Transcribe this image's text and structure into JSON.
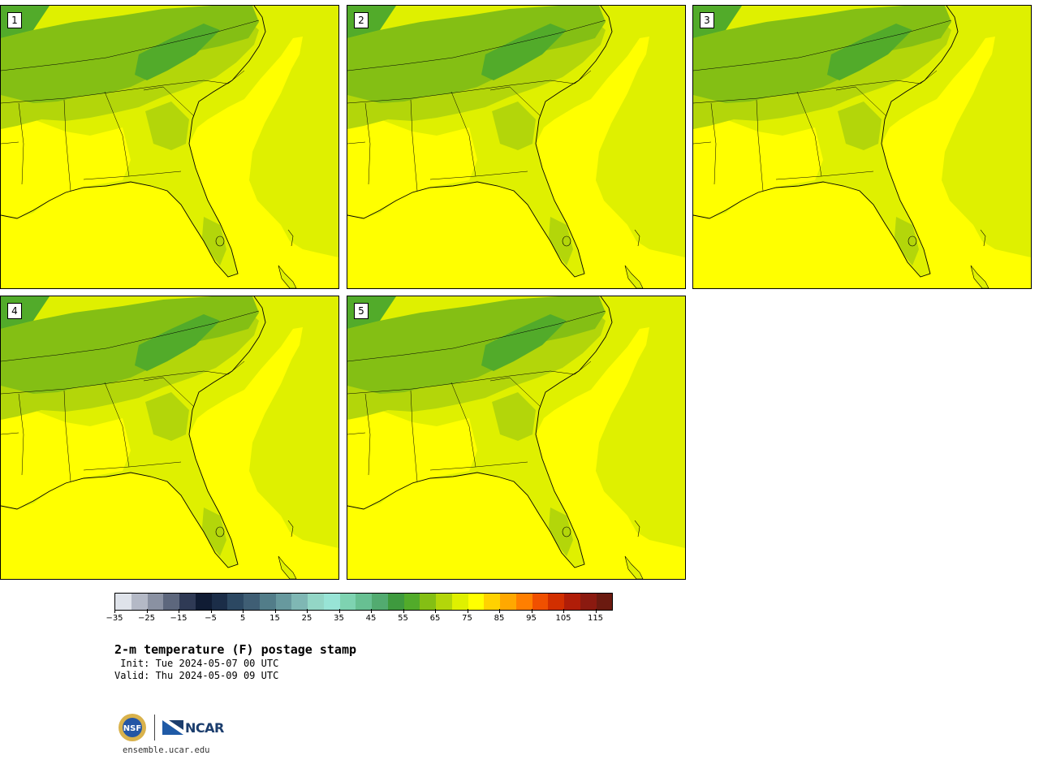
{
  "panels": [
    {
      "label": "1"
    },
    {
      "label": "2"
    },
    {
      "label": "3"
    },
    {
      "label": "4"
    },
    {
      "label": "5"
    }
  ],
  "colorbar": {
    "colors": [
      "#dfe3ea",
      "#b4b9c6",
      "#8a91a2",
      "#5d677d",
      "#2f3a55",
      "#101c34",
      "#1b2d48",
      "#2c4862",
      "#3f5e74",
      "#527d89",
      "#67999e",
      "#7fb7b4",
      "#93d6c6",
      "#98e4d6",
      "#7ed3b1",
      "#67c092",
      "#52ab70",
      "#3e9a3e",
      "#52ab2a",
      "#84bf14",
      "#b3d60a",
      "#dff000",
      "#ffff00",
      "#ffd200",
      "#ffa800",
      "#ff7f00",
      "#f05000",
      "#d22f00",
      "#b01d08",
      "#8b1a10",
      "#6b1a10"
    ],
    "tick_values": [
      -35,
      -25,
      -15,
      -5,
      5,
      15,
      25,
      35,
      45,
      55,
      65,
      75,
      85,
      95,
      105,
      115
    ],
    "tick_labels": [
      "−35",
      "−25",
      "−15",
      "−5",
      "5",
      "15",
      "25",
      "35",
      "45",
      "55",
      "65",
      "75",
      "85",
      "95",
      "105",
      "115"
    ],
    "vmin": -35,
    "vmax": 120
  },
  "title": "2-m temperature (F) postage stamp",
  "init_line": " Init: Tue 2024-05-07 00 UTC",
  "valid_line": "Valid: Thu 2024-05-09 09 UTC",
  "footer": {
    "nsf_text": "NSF",
    "ncar_text": "NCAR",
    "site": "ensemble.ucar.edu"
  },
  "field_colors": {
    "ocean": "#ffff00",
    "warm_land": "#dff000",
    "mid_land": "#b3d60a",
    "cool_land": "#84bf14",
    "coolest_land": "#52ab2a",
    "hot_spot": "#ffd200"
  }
}
